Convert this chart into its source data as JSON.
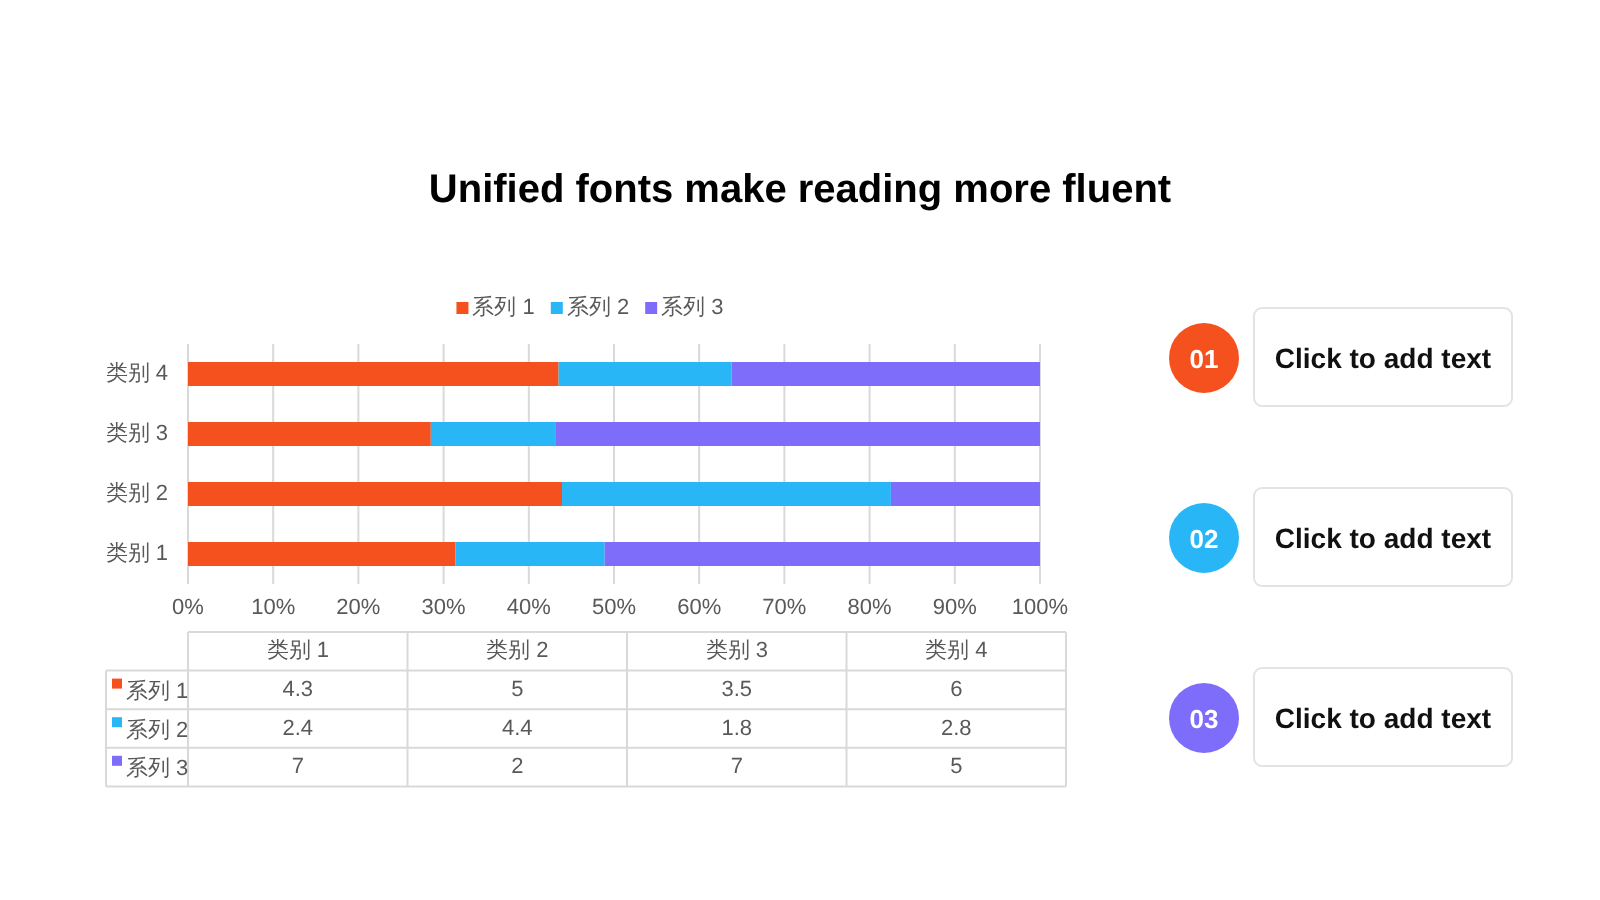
{
  "chart_data": [
    {
      "type": "bar",
      "title": "Unified fonts make reading more fluent",
      "orientation": "horizontal",
      "stacked": true,
      "categories": [
        "类别 4",
        "类别 3",
        "类别 2",
        "类别 1"
      ],
      "series": [
        {
          "name": "系列 1",
          "color": "#f4511e",
          "values": [
            43.5,
            28.5,
            43.9,
            31.4
          ]
        },
        {
          "name": "系列 2",
          "color": "#29b6f6",
          "values": [
            20.3,
            14.6,
            38.6,
            17.5
          ]
        },
        {
          "name": "系列 3",
          "color": "#7e6cfb",
          "values": [
            36.2,
            56.9,
            17.5,
            51.1
          ]
        }
      ],
      "xlim": [
        0,
        100
      ],
      "xticks": [
        {
          "value": 0,
          "label": "0%"
        },
        {
          "value": 10,
          "label": "10%"
        },
        {
          "value": 20,
          "label": "20%"
        },
        {
          "value": 30,
          "label": "30%"
        },
        {
          "value": 40,
          "label": "40%"
        },
        {
          "value": 50,
          "label": "50%"
        },
        {
          "value": 60,
          "label": "60%"
        },
        {
          "value": 70,
          "label": "70%"
        },
        {
          "value": 80,
          "label": "80%"
        },
        {
          "value": 90,
          "label": "90%"
        },
        {
          "value": 100,
          "label": "100%"
        }
      ],
      "grid": "x",
      "legend": "top"
    },
    {
      "type": "other",
      "categories": [
        "类别 1",
        "类别 2",
        "类别 3",
        "类别 4"
      ],
      "series": [
        {
          "name": "系列 1",
          "color": "#f4511e",
          "values": [
            4.3,
            5,
            3.5,
            6
          ]
        },
        {
          "name": "系列 2",
          "color": "#29b6f6",
          "values": [
            2.4,
            4.4,
            1.8,
            2.8
          ]
        },
        {
          "name": "系列 3",
          "color": "#7e6cfb",
          "values": [
            7,
            2,
            7,
            5
          ]
        }
      ],
      "data_labels": true
    },
    {
      "type": "other",
      "categories": [
        "01",
        "02",
        "03"
      ],
      "colors": [
        "#f4511e",
        "#29b6f6",
        "#7e6cfb"
      ],
      "annotations": [
        "Click to add text",
        "Click to add text",
        "Click to add text"
      ]
    }
  ]
}
